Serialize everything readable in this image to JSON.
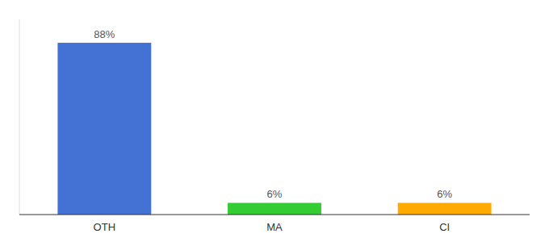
{
  "chart_data": {
    "type": "bar",
    "categories": [
      "OTH",
      "MA",
      "CI"
    ],
    "values": [
      88,
      6,
      6
    ],
    "value_labels": [
      "88%",
      "6%",
      "6%"
    ],
    "colors": [
      "#4472d4",
      "#33cc33",
      "#ffaa00"
    ],
    "ylim": [
      0,
      100
    ],
    "data_labels": true,
    "tick_labels": "x",
    "grid": false
  }
}
